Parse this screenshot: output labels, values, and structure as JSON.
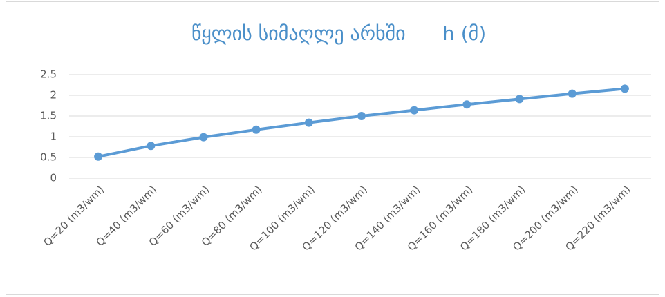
{
  "chart_data": {
    "type": "line",
    "title": "წყლის სიმაღლე არხში      h (მ)",
    "categories": [
      "Q=20 (m3/wm)",
      "Q=40 (m3/wm)",
      "Q=60 (m3/wm)",
      "Q=80 (m3/wm)",
      "Q=100 (m3/wm)",
      "Q=120 (m3/wm)",
      "Q=140 (m3/wm)",
      "Q=160 (m3/wm)",
      "Q=180 (m3/wm)",
      "Q=200 (m3/wm)",
      "Q=220 (m3/wm)"
    ],
    "values": [
      0.52,
      0.78,
      0.99,
      1.17,
      1.34,
      1.5,
      1.64,
      1.78,
      1.91,
      2.04,
      2.16
    ],
    "color": "#5b9bd5",
    "ylim": [
      0,
      2.5
    ],
    "yticks": [
      0,
      0.5,
      1,
      1.5,
      2,
      2.5
    ],
    "grid": true
  }
}
